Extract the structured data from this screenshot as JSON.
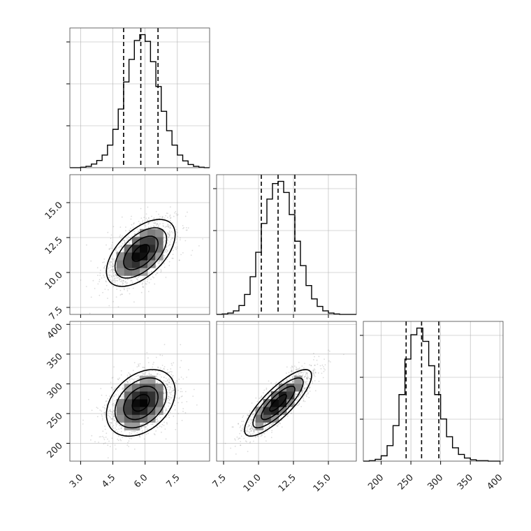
{
  "chart_data": {
    "type": "corner",
    "parameters": 3,
    "grid": true,
    "colors": {
      "line": "#000000",
      "scatter": "#9a9a9a",
      "grid": "#b0b0b0"
    },
    "ranges": [
      [
        2.5,
        9.0
      ],
      [
        7.0,
        17.0
      ],
      [
        170,
        405
      ]
    ],
    "ticks": [
      [
        3.0,
        4.5,
        6.0,
        7.5
      ],
      [
        7.5,
        10.0,
        12.5,
        15.0
      ],
      [
        200,
        250,
        300,
        350,
        400
      ]
    ],
    "tick_labels": [
      [
        "3.0",
        "4.5",
        "6.0",
        "7.5"
      ],
      [
        "7.5",
        "10.0",
        "12.5",
        "15.0"
      ],
      [
        "200",
        "250",
        "300",
        "350",
        "400"
      ]
    ],
    "quantiles": [
      [
        5.0,
        5.8,
        6.6
      ],
      [
        10.2,
        11.4,
        12.6
      ],
      [
        242,
        268,
        297
      ]
    ],
    "means": [
      5.8,
      11.4,
      268
    ],
    "stds": [
      0.8,
      1.2,
      28
    ],
    "histograms": [
      {
        "param": 0,
        "bin_edges": [
          2.5,
          2.75,
          3.0,
          3.25,
          3.5,
          3.75,
          4.0,
          4.25,
          4.5,
          4.75,
          5.0,
          5.25,
          5.5,
          5.75,
          6.0,
          6.25,
          6.5,
          6.75,
          7.0,
          7.25,
          7.5,
          7.75,
          8.0,
          8.25,
          8.5,
          8.75,
          9.0
        ],
        "counts": [
          0,
          0,
          1,
          3,
          8,
          16,
          28,
          50,
          85,
          130,
          190,
          240,
          282,
          295,
          280,
          235,
          180,
          125,
          82,
          50,
          28,
          15,
          7,
          3,
          1,
          0
        ]
      },
      {
        "param": 1,
        "bin_edges": [
          7.0,
          7.4,
          7.8,
          8.2,
          8.6,
          9.0,
          9.4,
          9.8,
          10.2,
          10.6,
          11.0,
          11.4,
          11.8,
          12.2,
          12.6,
          13.0,
          13.4,
          13.8,
          14.2,
          14.6,
          15.0,
          15.4,
          15.8,
          16.2,
          16.6,
          17.0
        ],
        "counts": [
          0,
          1,
          3,
          8,
          20,
          45,
          85,
          140,
          205,
          260,
          295,
          300,
          275,
          225,
          165,
          110,
          65,
          35,
          18,
          8,
          3,
          1,
          0,
          0,
          0
        ]
      },
      {
        "param": 2,
        "bin_edges": [
          170,
          180,
          190,
          200,
          210,
          220,
          230,
          240,
          250,
          260,
          270,
          280,
          290,
          300,
          310,
          320,
          330,
          340,
          350,
          360,
          370,
          380,
          390,
          400
        ],
        "counts": [
          0,
          1,
          4,
          12,
          35,
          80,
          150,
          230,
          285,
          300,
          270,
          215,
          150,
          95,
          55,
          30,
          15,
          7,
          3,
          1,
          1,
          0,
          0
        ]
      }
    ],
    "panels_2d": [
      {
        "x_param": 0,
        "y_param": 1,
        "correlation": 0.55
      },
      {
        "x_param": 0,
        "y_param": 2,
        "correlation": 0.35
      },
      {
        "x_param": 1,
        "y_param": 2,
        "correlation": 0.82
      }
    ],
    "contour_levels_sigma": [
      0.5,
      1.0,
      1.5,
      2.0
    ]
  }
}
